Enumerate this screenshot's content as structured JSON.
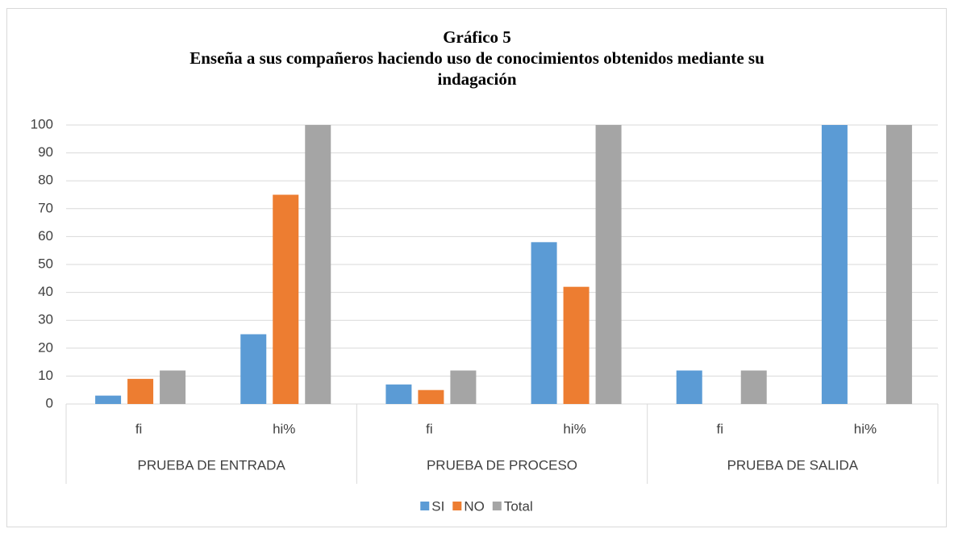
{
  "chart_data": {
    "type": "bar",
    "title": "Gráfico 5",
    "subtitle": "Enseña a sus compañeros haciendo uso de conocimientos obtenidos mediante su indagación",
    "categories": [
      "fi",
      "hi%",
      "fi",
      "hi%",
      "fi",
      "hi%"
    ],
    "groups": [
      "PRUEBA DE ENTRADA",
      "PRUEBA DE PROCESO",
      "PRUEBA DE SALIDA"
    ],
    "series": [
      {
        "name": "SI",
        "color": "#5b9bd5",
        "values": [
          3,
          25,
          7,
          58,
          12,
          100
        ]
      },
      {
        "name": "NO",
        "color": "#ed7d31",
        "values": [
          9,
          75,
          5,
          42,
          0,
          0
        ]
      },
      {
        "name": "Total",
        "color": "#a5a5a5",
        "values": [
          12,
          100,
          12,
          100,
          12,
          100
        ]
      }
    ],
    "ylim": [
      0,
      100
    ],
    "yticks": [
      0,
      10,
      20,
      30,
      40,
      50,
      60,
      70,
      80,
      90,
      100
    ],
    "grid": true,
    "legend": "bottom"
  }
}
